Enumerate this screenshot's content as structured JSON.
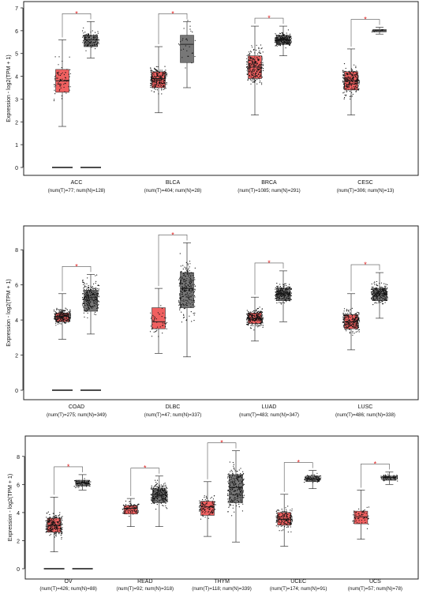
{
  "chart_data": [
    {
      "type": "boxplot",
      "ylabel": "Expression - log2(TPM + 1)",
      "ylim": [
        0,
        7
      ],
      "yticks": [
        0,
        1,
        2,
        3,
        4,
        5,
        6,
        7
      ],
      "significance_marker": "*",
      "colors": {
        "tumor": "#f06060",
        "normal": "#777777"
      },
      "groups": [
        {
          "label": "ACC",
          "sub": "(num(T)=77; num(N)=128)",
          "tumor": {
            "q1": 3.3,
            "median": 3.8,
            "q3": 4.3,
            "wlo": 1.8,
            "whi": 5.6,
            "n": 77
          },
          "normal": {
            "q1": 5.3,
            "median": 5.6,
            "q3": 5.8,
            "wlo": 4.8,
            "whi": 6.4,
            "n": 128
          },
          "zero_lines": true,
          "sig": true
        },
        {
          "label": "BLCA",
          "sub": "(num(T)=404; num(N)=28)",
          "tumor": {
            "q1": 3.5,
            "median": 3.9,
            "q3": 4.2,
            "wlo": 2.4,
            "whi": 5.3,
            "n": 404
          },
          "normal": {
            "q1": 4.6,
            "median": 5.4,
            "q3": 5.8,
            "wlo": 3.5,
            "whi": 6.4,
            "n": 28
          },
          "zero_lines": false,
          "sig": true
        },
        {
          "label": "BRCA",
          "sub": "(num(T)=1085; num(N)=291)",
          "tumor": {
            "q1": 3.9,
            "median": 4.4,
            "q3": 4.9,
            "wlo": 2.3,
            "whi": 6.2,
            "n": 1085
          },
          "normal": {
            "q1": 5.4,
            "median": 5.6,
            "q3": 5.8,
            "wlo": 4.9,
            "whi": 6.2,
            "n": 291
          },
          "zero_lines": false,
          "sig": true
        },
        {
          "label": "CESC",
          "sub": "(num(T)=306; num(N)=13)",
          "tumor": {
            "q1": 3.4,
            "median": 3.8,
            "q3": 4.2,
            "wlo": 2.3,
            "whi": 5.2,
            "n": 306
          },
          "normal": {
            "q1": 5.95,
            "median": 6.0,
            "q3": 6.05,
            "wlo": 5.85,
            "whi": 6.15,
            "n": 13
          },
          "zero_lines": false,
          "sig": true
        }
      ]
    },
    {
      "type": "boxplot",
      "ylabel": "Expression - log2(TPM + 1)",
      "ylim": [
        0,
        9
      ],
      "yticks": [
        0,
        2,
        4,
        6,
        8
      ],
      "significance_marker": "*",
      "colors": {
        "tumor": "#f06060",
        "normal": "#777777"
      },
      "groups": [
        {
          "label": "COAD",
          "sub": "(num(T)=275; num(N)=349)",
          "tumor": {
            "q1": 3.9,
            "median": 4.2,
            "q3": 4.4,
            "wlo": 2.9,
            "whi": 5.5,
            "n": 275
          },
          "normal": {
            "q1": 4.5,
            "median": 5.3,
            "q3": 5.7,
            "wlo": 3.2,
            "whi": 6.6,
            "n": 349
          },
          "zero_lines": true,
          "sig": true
        },
        {
          "label": "DLBC",
          "sub": "(num(T)=47; num(N)=337)",
          "tumor": {
            "q1": 3.5,
            "median": 3.9,
            "q3": 4.7,
            "wlo": 2.1,
            "whi": 5.8,
            "n": 47
          },
          "normal": {
            "q1": 4.7,
            "median": 5.8,
            "q3": 6.7,
            "wlo": 1.9,
            "whi": 8.4,
            "n": 337
          },
          "zero_lines": false,
          "sig": true
        },
        {
          "label": "LUAD",
          "sub": "(num(T)=483; num(N)=347)",
          "tumor": {
            "q1": 3.8,
            "median": 4.1,
            "q3": 4.4,
            "wlo": 2.8,
            "whi": 5.3,
            "n": 483
          },
          "normal": {
            "q1": 5.1,
            "median": 5.5,
            "q3": 5.8,
            "wlo": 3.9,
            "whi": 6.8,
            "n": 347
          },
          "zero_lines": false,
          "sig": true
        },
        {
          "label": "LUSC",
          "sub": "(num(T)=486; num(N)=338)",
          "tumor": {
            "q1": 3.5,
            "median": 3.9,
            "q3": 4.3,
            "wlo": 2.3,
            "whi": 5.5,
            "n": 486
          },
          "normal": {
            "q1": 5.1,
            "median": 5.5,
            "q3": 5.8,
            "wlo": 4.1,
            "whi": 6.7,
            "n": 338
          },
          "zero_lines": false,
          "sig": true
        }
      ]
    },
    {
      "type": "boxplot",
      "ylabel": "Expression - log2(TPM + 1)",
      "ylim": [
        0,
        9
      ],
      "yticks": [
        0,
        2,
        4,
        6,
        8
      ],
      "significance_marker": "*",
      "colors": {
        "tumor": "#f06060",
        "normal": "#777777"
      },
      "groups": [
        {
          "label": "OV",
          "sub": "(num(T)=426; num(N)=88)",
          "tumor": {
            "q1": 2.6,
            "median": 3.1,
            "q3": 3.6,
            "wlo": 1.2,
            "whi": 5.1,
            "n": 426
          },
          "normal": {
            "q1": 5.9,
            "median": 6.1,
            "q3": 6.3,
            "wlo": 5.6,
            "whi": 6.7,
            "n": 88
          },
          "zero_lines": true,
          "sig": true
        },
        {
          "label": "READ",
          "sub": "(num(T)=92; num(N)=318)",
          "tumor": {
            "q1": 3.9,
            "median": 4.3,
            "q3": 4.5,
            "wlo": 3.0,
            "whi": 5.0,
            "n": 92
          },
          "normal": {
            "q1": 4.7,
            "median": 5.3,
            "q3": 5.7,
            "wlo": 3.0,
            "whi": 6.6,
            "n": 318
          },
          "zero_lines": false,
          "sig": true
        },
        {
          "label": "THYM",
          "sub": "(num(T)=118; num(N)=339)",
          "tumor": {
            "q1": 3.8,
            "median": 4.4,
            "q3": 4.8,
            "wlo": 2.3,
            "whi": 6.2,
            "n": 118
          },
          "normal": {
            "q1": 4.7,
            "median": 5.8,
            "q3": 6.7,
            "wlo": 1.9,
            "whi": 8.4,
            "n": 339
          },
          "zero_lines": false,
          "sig": true
        },
        {
          "label": "UCEC",
          "sub": "(num(T)=174; num(N)=91)",
          "tumor": {
            "q1": 3.1,
            "median": 3.5,
            "q3": 4.0,
            "wlo": 1.6,
            "whi": 5.3,
            "n": 174
          },
          "normal": {
            "q1": 6.2,
            "median": 6.4,
            "q3": 6.6,
            "wlo": 5.7,
            "whi": 7.0,
            "n": 91
          },
          "zero_lines": false,
          "sig": true
        },
        {
          "label": "UCS",
          "sub": "(num(T)=57; num(N)=78)",
          "tumor": {
            "q1": 3.2,
            "median": 3.7,
            "q3": 4.1,
            "wlo": 2.1,
            "whi": 5.6,
            "n": 57
          },
          "normal": {
            "q1": 6.3,
            "median": 6.5,
            "q3": 6.6,
            "wlo": 6.0,
            "whi": 6.9,
            "n": 78
          },
          "zero_lines": false,
          "sig": true
        }
      ]
    }
  ]
}
